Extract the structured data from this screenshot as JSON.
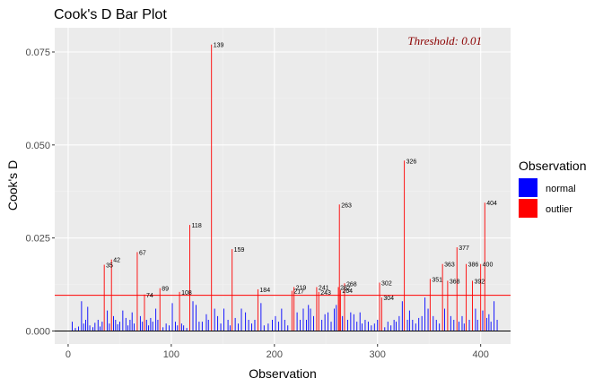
{
  "chart_data": {
    "type": "bar",
    "title": "Cook's D Bar Plot",
    "xlabel": "Observation",
    "ylabel": "Cook's D",
    "xlim": [
      -13,
      429
    ],
    "ylim": [
      -0.0035,
      0.0815
    ],
    "xticks": [
      0,
      100,
      200,
      300,
      400
    ],
    "yticks": [
      0.0,
      0.025,
      0.05,
      0.075
    ],
    "ytick_labels": [
      "0.000",
      "0.025",
      "0.050",
      "0.075"
    ],
    "threshold": 0.0096,
    "threshold_label": "Threshold: 0.01",
    "colors": {
      "normal": "#0000ff",
      "outlier": "#ff0000",
      "threshold": "#ff0000",
      "threshold_label": "#8b0000"
    },
    "legend": {
      "title": "Observation",
      "position": "right",
      "entries": [
        {
          "name": "normal",
          "color": "#0000ff"
        },
        {
          "name": "outlier",
          "color": "#ff0000"
        }
      ]
    },
    "outliers": [
      {
        "x": 35,
        "y": 0.0178,
        "label": "35"
      },
      {
        "x": 42,
        "y": 0.0192,
        "label": "42"
      },
      {
        "x": 67,
        "y": 0.0212,
        "label": "67"
      },
      {
        "x": 74,
        "y": 0.0098,
        "label": "74"
      },
      {
        "x": 89,
        "y": 0.0115,
        "label": "89"
      },
      {
        "x": 108,
        "y": 0.0105,
        "label": "108"
      },
      {
        "x": 118,
        "y": 0.0285,
        "label": "118"
      },
      {
        "x": 139,
        "y": 0.077,
        "label": "139"
      },
      {
        "x": 159,
        "y": 0.022,
        "label": "159"
      },
      {
        "x": 184,
        "y": 0.0112,
        "label": "184"
      },
      {
        "x": 217,
        "y": 0.0108,
        "label": "217"
      },
      {
        "x": 219,
        "y": 0.0118,
        "label": "219"
      },
      {
        "x": 241,
        "y": 0.0118,
        "label": "241"
      },
      {
        "x": 243,
        "y": 0.0105,
        "label": "243"
      },
      {
        "x": 262,
        "y": 0.0118,
        "label": "262"
      },
      {
        "x": 263,
        "y": 0.034,
        "label": "263"
      },
      {
        "x": 264,
        "y": 0.011,
        "label": "264"
      },
      {
        "x": 268,
        "y": 0.0128,
        "label": "268"
      },
      {
        "x": 302,
        "y": 0.013,
        "label": "302"
      },
      {
        "x": 304,
        "y": 0.009,
        "label": "304"
      },
      {
        "x": 326,
        "y": 0.0458,
        "label": "326"
      },
      {
        "x": 351,
        "y": 0.014,
        "label": "351"
      },
      {
        "x": 363,
        "y": 0.018,
        "label": "363"
      },
      {
        "x": 368,
        "y": 0.0135,
        "label": "368"
      },
      {
        "x": 377,
        "y": 0.0225,
        "label": "377"
      },
      {
        "x": 386,
        "y": 0.018,
        "label": "386"
      },
      {
        "x": 392,
        "y": 0.0135,
        "label": "392"
      },
      {
        "x": 400,
        "y": 0.018,
        "label": "400"
      },
      {
        "x": 404,
        "y": 0.0345,
        "label": "404"
      }
    ],
    "normal": [
      [
        4,
        0.0025
      ],
      [
        7,
        0.0008
      ],
      [
        10,
        0.0012
      ],
      [
        13,
        0.008
      ],
      [
        15,
        0.002
      ],
      [
        17,
        0.003
      ],
      [
        19,
        0.0065
      ],
      [
        21,
        0.0015
      ],
      [
        24,
        0.001
      ],
      [
        26,
        0.0022
      ],
      [
        29,
        0.003
      ],
      [
        31,
        0.0012
      ],
      [
        33,
        0.0025
      ],
      [
        38,
        0.0055
      ],
      [
        40,
        0.002
      ],
      [
        44,
        0.004
      ],
      [
        46,
        0.003
      ],
      [
        48,
        0.0018
      ],
      [
        50,
        0.0025
      ],
      [
        53,
        0.0055
      ],
      [
        56,
        0.0035
      ],
      [
        58,
        0.0015
      ],
      [
        60,
        0.003
      ],
      [
        62,
        0.005
      ],
      [
        64,
        0.002
      ],
      [
        70,
        0.004
      ],
      [
        72,
        0.0025
      ],
      [
        76,
        0.003
      ],
      [
        78,
        0.0015
      ],
      [
        80,
        0.0035
      ],
      [
        82,
        0.0025
      ],
      [
        85,
        0.006
      ],
      [
        87,
        0.003
      ],
      [
        92,
        0.001
      ],
      [
        95,
        0.002
      ],
      [
        98,
        0.0015
      ],
      [
        101,
        0.0075
      ],
      [
        104,
        0.0025
      ],
      [
        106,
        0.0015
      ],
      [
        110,
        0.002
      ],
      [
        112,
        0.0015
      ],
      [
        115,
        0.0008
      ],
      [
        121,
        0.008
      ],
      [
        124,
        0.007
      ],
      [
        127,
        0.0025
      ],
      [
        130,
        0.0025
      ],
      [
        134,
        0.0045
      ],
      [
        136,
        0.003
      ],
      [
        142,
        0.006
      ],
      [
        145,
        0.004
      ],
      [
        148,
        0.002
      ],
      [
        151,
        0.006
      ],
      [
        155,
        0.003
      ],
      [
        157,
        0.0015
      ],
      [
        162,
        0.0035
      ],
      [
        165,
        0.002
      ],
      [
        168,
        0.006
      ],
      [
        172,
        0.005
      ],
      [
        175,
        0.003
      ],
      [
        178,
        0.002
      ],
      [
        181,
        0.003
      ],
      [
        187,
        0.0075
      ],
      [
        190,
        0.0015
      ],
      [
        194,
        0.002
      ],
      [
        198,
        0.003
      ],
      [
        201,
        0.004
      ],
      [
        204,
        0.0025
      ],
      [
        207,
        0.006
      ],
      [
        210,
        0.003
      ],
      [
        213,
        0.0015
      ],
      [
        222,
        0.005
      ],
      [
        225,
        0.003
      ],
      [
        228,
        0.006
      ],
      [
        231,
        0.003
      ],
      [
        233,
        0.007
      ],
      [
        235,
        0.006
      ],
      [
        238,
        0.004
      ],
      [
        246,
        0.003
      ],
      [
        249,
        0.0045
      ],
      [
        252,
        0.005
      ],
      [
        255,
        0.0025
      ],
      [
        258,
        0.006
      ],
      [
        260,
        0.007
      ],
      [
        266,
        0.004
      ],
      [
        271,
        0.003
      ],
      [
        274,
        0.005
      ],
      [
        277,
        0.0045
      ],
      [
        280,
        0.0025
      ],
      [
        283,
        0.005
      ],
      [
        285,
        0.002
      ],
      [
        288,
        0.003
      ],
      [
        291,
        0.0025
      ],
      [
        294,
        0.0015
      ],
      [
        297,
        0.002
      ],
      [
        300,
        0.003
      ],
      [
        307,
        0.001
      ],
      [
        310,
        0.0025
      ],
      [
        313,
        0.0015
      ],
      [
        316,
        0.003
      ],
      [
        318,
        0.0025
      ],
      [
        321,
        0.004
      ],
      [
        324,
        0.008
      ],
      [
        329,
        0.003
      ],
      [
        331,
        0.0055
      ],
      [
        334,
        0.003
      ],
      [
        337,
        0.002
      ],
      [
        340,
        0.0035
      ],
      [
        343,
        0.004
      ],
      [
        346,
        0.009
      ],
      [
        349,
        0.006
      ],
      [
        354,
        0.004
      ],
      [
        357,
        0.003
      ],
      [
        360,
        0.002
      ],
      [
        365,
        0.006
      ],
      [
        371,
        0.004
      ],
      [
        374,
        0.003
      ],
      [
        379,
        0.0025
      ],
      [
        382,
        0.004
      ],
      [
        384,
        0.002
      ],
      [
        389,
        0.003
      ],
      [
        395,
        0.006
      ],
      [
        397,
        0.003
      ],
      [
        402,
        0.0055
      ],
      [
        406,
        0.0035
      ],
      [
        408,
        0.0045
      ],
      [
        410,
        0.0025
      ],
      [
        413,
        0.008
      ],
      [
        416,
        0.003
      ]
    ]
  }
}
